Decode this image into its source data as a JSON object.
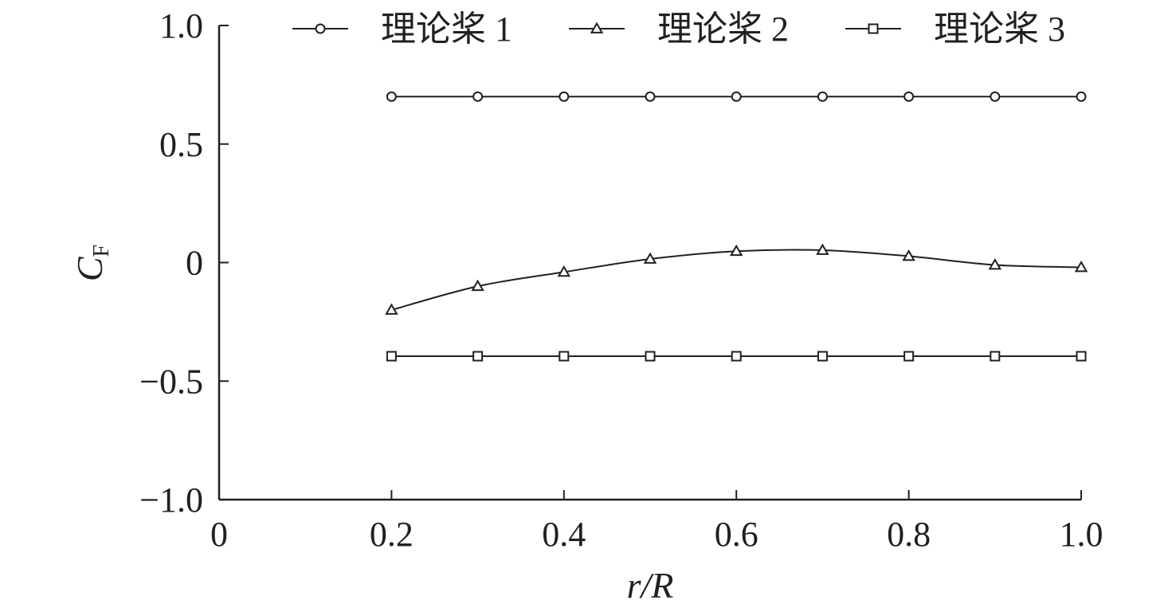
{
  "chart_data": {
    "type": "line",
    "title": "",
    "xlabel": "r/R",
    "ylabel_main": "C",
    "ylabel_sub": "F",
    "xlim": [
      0,
      1.0
    ],
    "ylim": [
      -1.0,
      1.0
    ],
    "x_ticks": [
      {
        "value": 0,
        "label": "0"
      },
      {
        "value": 0.2,
        "label": "0.2"
      },
      {
        "value": 0.4,
        "label": "0.4"
      },
      {
        "value": 0.6,
        "label": "0.6"
      },
      {
        "value": 0.8,
        "label": "0.8"
      },
      {
        "value": 1.0,
        "label": "1.0"
      }
    ],
    "y_ticks": [
      {
        "value": 1.0,
        "label": "1.0"
      },
      {
        "value": 0.5,
        "label": "0.5"
      },
      {
        "value": 0,
        "label": "0"
      },
      {
        "value": -0.5,
        "label": "−0.5"
      },
      {
        "value": -1.0,
        "label": "−1.0"
      }
    ],
    "legend_position": "top",
    "grid": false,
    "series": [
      {
        "name": "理论桨 1",
        "marker": "circle",
        "smooth": false,
        "x": [
          0.2,
          0.3,
          0.4,
          0.5,
          0.6,
          0.7,
          0.8,
          0.9,
          1.0
        ],
        "y": [
          0.7,
          0.7,
          0.7,
          0.7,
          0.7,
          0.7,
          0.7,
          0.7,
          0.7
        ]
      },
      {
        "name": "理论桨 2",
        "marker": "triangle",
        "smooth": true,
        "x": [
          0.2,
          0.3,
          0.4,
          0.5,
          0.6,
          0.7,
          0.8,
          0.9,
          1.0
        ],
        "y": [
          -0.2,
          -0.1,
          -0.04,
          0.015,
          0.048,
          0.052,
          0.027,
          -0.01,
          -0.02
        ]
      },
      {
        "name": "理论桨 3",
        "marker": "square",
        "smooth": false,
        "x": [
          0.2,
          0.3,
          0.4,
          0.5,
          0.6,
          0.7,
          0.8,
          0.9,
          1.0
        ],
        "y": [
          -0.395,
          -0.395,
          -0.395,
          -0.395,
          -0.395,
          -0.395,
          -0.395,
          -0.395,
          -0.395
        ]
      }
    ]
  }
}
